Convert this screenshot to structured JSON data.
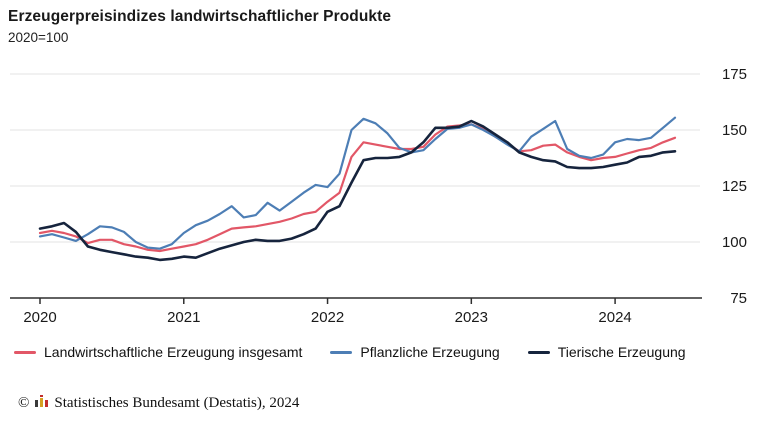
{
  "header": {
    "title": "Erzeugerpreisindizes landwirtschaftlicher Produkte",
    "subtitle": "2020=100"
  },
  "chart_data": {
    "type": "line",
    "title": "Erzeugerpreisindizes landwirtschaftlicher Produkte",
    "subtitle": "2020=100",
    "xlabel": "",
    "ylabel": "",
    "ylim": [
      75,
      175
    ],
    "yticks": [
      75,
      100,
      125,
      150,
      175
    ],
    "grid": "horizontal",
    "legend_position": "bottom",
    "x": [
      "2020-01",
      "2020-02",
      "2020-03",
      "2020-04",
      "2020-05",
      "2020-06",
      "2020-07",
      "2020-08",
      "2020-09",
      "2020-10",
      "2020-11",
      "2020-12",
      "2021-01",
      "2021-02",
      "2021-03",
      "2021-04",
      "2021-05",
      "2021-06",
      "2021-07",
      "2021-08",
      "2021-09",
      "2021-10",
      "2021-11",
      "2021-12",
      "2022-01",
      "2022-02",
      "2022-03",
      "2022-04",
      "2022-05",
      "2022-06",
      "2022-07",
      "2022-08",
      "2022-09",
      "2022-10",
      "2022-11",
      "2022-12",
      "2023-01",
      "2023-02",
      "2023-03",
      "2023-04",
      "2023-05",
      "2023-06",
      "2023-07",
      "2023-08",
      "2023-09",
      "2023-10",
      "2023-11",
      "2023-12",
      "2024-01",
      "2024-02",
      "2024-03",
      "2024-04",
      "2024-05",
      "2024-06"
    ],
    "xticks": [
      {
        "label": "2020",
        "index": 0
      },
      {
        "label": "2021",
        "index": 12
      },
      {
        "label": "2022",
        "index": 24
      },
      {
        "label": "2023",
        "index": 36
      },
      {
        "label": "2024",
        "index": 48
      }
    ],
    "series": [
      {
        "name": "Landwirtschaftliche Erzeugung insgesamt",
        "color": "#e25767",
        "width": 2.2,
        "values": [
          104,
          105,
          104,
          102.5,
          99.5,
          101,
          101,
          99,
          98,
          96.5,
          96,
          97,
          98,
          99,
          101,
          103.5,
          106,
          106.5,
          107,
          108,
          109,
          110.5,
          112.5,
          113.5,
          118,
          122,
          138,
          144.5,
          143.5,
          142.5,
          141.5,
          141.5,
          142.5,
          148,
          151.5,
          152,
          152.5,
          150.5,
          147,
          144,
          140.5,
          141,
          143,
          143.5,
          140,
          138,
          136.5,
          137.5,
          138,
          139.5,
          141,
          142,
          144.5,
          146.5
        ]
      },
      {
        "name": "Pflanzliche Erzeugung",
        "color": "#4d7eb5",
        "width": 2.2,
        "values": [
          102.5,
          103.5,
          102,
          100.5,
          103.5,
          107,
          106.5,
          104.5,
          100,
          97.5,
          97,
          99,
          104,
          107.5,
          109.5,
          112.5,
          116,
          111,
          112,
          117.5,
          114,
          118,
          122,
          125.5,
          124.5,
          130.5,
          150,
          155,
          153,
          148.5,
          142,
          140,
          141,
          146,
          150.5,
          151,
          152.5,
          150,
          147,
          143.5,
          140.5,
          147,
          150.5,
          154,
          141.5,
          138.5,
          137.5,
          139,
          144.5,
          146,
          145.5,
          146.5,
          151,
          155.5
        ]
      },
      {
        "name": "Tierische Erzeugung",
        "color": "#16243d",
        "width": 2.6,
        "values": [
          106,
          107,
          108.5,
          104.5,
          98,
          96.5,
          95.5,
          94.5,
          93.5,
          93,
          92,
          92.5,
          93.5,
          93,
          95,
          97,
          98.5,
          100,
          101,
          100.5,
          100.5,
          101.5,
          103.5,
          106,
          113.5,
          116,
          126.5,
          136.5,
          137.5,
          137.5,
          138,
          140,
          144.5,
          151,
          151,
          151.5,
          154,
          151.5,
          148,
          144.5,
          140,
          138,
          136.5,
          136,
          133.5,
          133,
          133,
          133.5,
          134.5,
          135.5,
          138,
          138.5,
          140,
          140.5
        ]
      }
    ],
    "axis_color": "#2f2f2f",
    "gridline_color": "#e3e3e3",
    "tick_label_color": "#1a1a1a"
  },
  "footer": {
    "copyright": "©",
    "source": "Statistisches Bundesamt (Destatis), 2024"
  }
}
